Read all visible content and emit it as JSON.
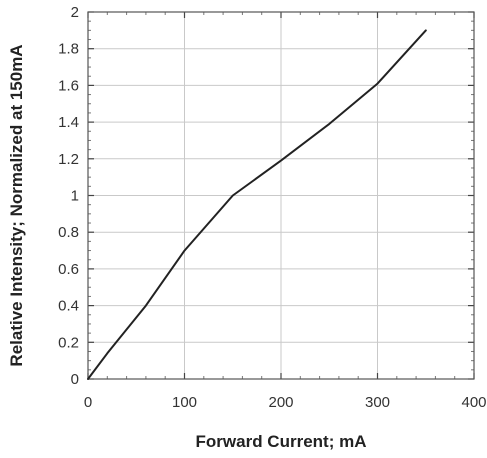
{
  "chart_data": {
    "type": "line",
    "title": "",
    "xlabel": "Forward Current; mA",
    "ylabel": "Relative Intensity; Normalized at 150mA",
    "xlim": [
      0,
      400
    ],
    "ylim": [
      0,
      2
    ],
    "x_ticks": [
      0,
      100,
      200,
      300,
      400
    ],
    "x_tick_labels": [
      "0",
      "100",
      "200",
      "300",
      "400"
    ],
    "y_ticks": [
      0,
      0.2,
      0.4,
      0.6,
      0.8,
      1,
      1.2,
      1.4,
      1.6,
      1.8,
      2
    ],
    "y_tick_labels": [
      "0",
      "0.2",
      "0.4",
      "0.6",
      "0.8",
      "1",
      "1.2",
      "1.4",
      "1.6",
      "1.8",
      "2"
    ],
    "grid": true,
    "legend": "none",
    "series": [
      {
        "color": "#222222",
        "x": [
          0,
          20,
          60,
          100,
          150,
          200,
          250,
          300,
          350
        ],
        "y": [
          0,
          0.14,
          0.4,
          0.7,
          1.0,
          1.19,
          1.39,
          1.61,
          1.9
        ]
      }
    ]
  }
}
